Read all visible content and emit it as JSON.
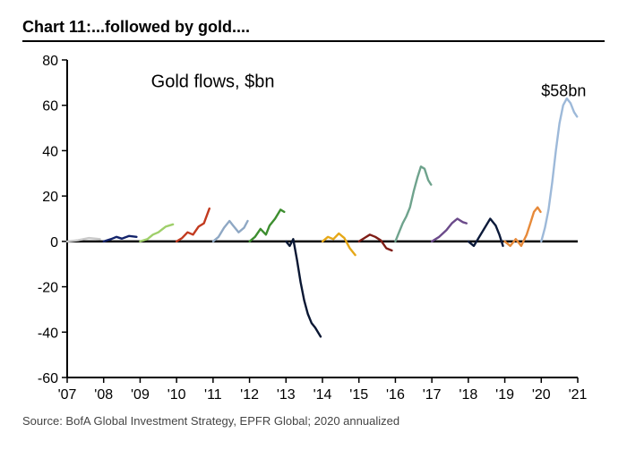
{
  "header": {
    "title": "Chart 11:...followed by gold...."
  },
  "chart": {
    "type": "line",
    "title_internal": "Gold flows, $bn",
    "annotation": "$58bn",
    "xlim": [
      2007,
      2021
    ],
    "ylim": [
      -60,
      80
    ],
    "ytick_step": 20,
    "yticks": [
      -60,
      -40,
      -20,
      0,
      20,
      40,
      60,
      80
    ],
    "xticks": [
      2007,
      2008,
      2009,
      2010,
      2011,
      2012,
      2013,
      2014,
      2015,
      2016,
      2017,
      2018,
      2019,
      2020,
      2021
    ],
    "xtick_labels": [
      "'07",
      "'08",
      "'09",
      "'10",
      "'11",
      "'12",
      "'13",
      "'14",
      "'15",
      "'16",
      "'17",
      "'18",
      "'19",
      "'20",
      "'21"
    ],
    "axis_color": "#000000",
    "background_color": "#ffffff",
    "line_width": 2.4,
    "title_fontsize": 20,
    "tick_fontsize": 16,
    "series": [
      {
        "color": "#c9c9c9",
        "points": [
          [
            2007.0,
            0
          ],
          [
            2007.3,
            0.5
          ],
          [
            2007.6,
            1.5
          ],
          [
            2007.9,
            1.0
          ]
        ]
      },
      {
        "color": "#13236b",
        "points": [
          [
            2008.0,
            0
          ],
          [
            2008.2,
            1.0
          ],
          [
            2008.35,
            2.0
          ],
          [
            2008.5,
            1.2
          ],
          [
            2008.7,
            2.4
          ],
          [
            2008.9,
            2.0
          ]
        ]
      },
      {
        "color": "#9fcf6a",
        "points": [
          [
            2009.0,
            0
          ],
          [
            2009.2,
            1.0
          ],
          [
            2009.35,
            3.0
          ],
          [
            2009.5,
            4.0
          ],
          [
            2009.7,
            6.5
          ],
          [
            2009.9,
            7.5
          ]
        ]
      },
      {
        "color": "#c23a1f",
        "points": [
          [
            2010.0,
            0
          ],
          [
            2010.15,
            1.5
          ],
          [
            2010.3,
            4.0
          ],
          [
            2010.45,
            3.0
          ],
          [
            2010.6,
            6.5
          ],
          [
            2010.75,
            8.0
          ],
          [
            2010.9,
            14.5
          ]
        ]
      },
      {
        "color": "#8fa8c4",
        "points": [
          [
            2011.0,
            0
          ],
          [
            2011.15,
            2.0
          ],
          [
            2011.3,
            6.0
          ],
          [
            2011.45,
            9.0
          ],
          [
            2011.55,
            7.0
          ],
          [
            2011.7,
            4.0
          ],
          [
            2011.85,
            6.0
          ],
          [
            2011.95,
            9.0
          ]
        ]
      },
      {
        "color": "#3d8e2f",
        "points": [
          [
            2012.0,
            0
          ],
          [
            2012.15,
            2.0
          ],
          [
            2012.3,
            5.5
          ],
          [
            2012.45,
            3.0
          ],
          [
            2012.55,
            7.0
          ],
          [
            2012.7,
            10.0
          ],
          [
            2012.85,
            14.0
          ],
          [
            2012.95,
            13.0
          ]
        ]
      },
      {
        "color": "#0a1733",
        "points": [
          [
            2013.0,
            0
          ],
          [
            2013.1,
            -2.0
          ],
          [
            2013.2,
            1.0
          ],
          [
            2013.3,
            -8.0
          ],
          [
            2013.4,
            -18.0
          ],
          [
            2013.5,
            -26.0
          ],
          [
            2013.6,
            -32.0
          ],
          [
            2013.7,
            -36.0
          ],
          [
            2013.8,
            -38.0
          ],
          [
            2013.95,
            -42.0
          ]
        ]
      },
      {
        "color": "#e6a818",
        "points": [
          [
            2014.0,
            0
          ],
          [
            2014.15,
            2.0
          ],
          [
            2014.3,
            1.0
          ],
          [
            2014.45,
            3.5
          ],
          [
            2014.6,
            1.5
          ],
          [
            2014.75,
            -3.0
          ],
          [
            2014.9,
            -6.0
          ]
        ]
      },
      {
        "color": "#7f1d16",
        "points": [
          [
            2015.0,
            0
          ],
          [
            2015.15,
            1.5
          ],
          [
            2015.3,
            3.0
          ],
          [
            2015.45,
            2.0
          ],
          [
            2015.6,
            0.5
          ],
          [
            2015.75,
            -3.0
          ],
          [
            2015.9,
            -4.0
          ]
        ]
      },
      {
        "color": "#6fa38d",
        "points": [
          [
            2016.0,
            0
          ],
          [
            2016.1,
            4.0
          ],
          [
            2016.2,
            8.0
          ],
          [
            2016.3,
            11.0
          ],
          [
            2016.4,
            15.0
          ],
          [
            2016.5,
            22.0
          ],
          [
            2016.6,
            28.0
          ],
          [
            2016.7,
            33.0
          ],
          [
            2016.8,
            32.0
          ],
          [
            2016.9,
            27.0
          ],
          [
            2016.98,
            25.0
          ]
        ]
      },
      {
        "color": "#6b4a8a",
        "points": [
          [
            2017.0,
            0
          ],
          [
            2017.2,
            2.0
          ],
          [
            2017.4,
            5.0
          ],
          [
            2017.55,
            8.0
          ],
          [
            2017.7,
            10.0
          ],
          [
            2017.85,
            8.5
          ],
          [
            2017.95,
            8.0
          ]
        ]
      },
      {
        "color": "#0c1a3a",
        "points": [
          [
            2018.0,
            0
          ],
          [
            2018.15,
            -2.0
          ],
          [
            2018.3,
            2.0
          ],
          [
            2018.45,
            6.0
          ],
          [
            2018.6,
            10.0
          ],
          [
            2018.75,
            7.0
          ],
          [
            2018.85,
            3.0
          ],
          [
            2018.95,
            -2.0
          ]
        ]
      },
      {
        "color": "#e78a3a",
        "points": [
          [
            2019.0,
            0
          ],
          [
            2019.15,
            -2.0
          ],
          [
            2019.3,
            1.0
          ],
          [
            2019.45,
            -2.0
          ],
          [
            2019.6,
            3.0
          ],
          [
            2019.7,
            8.0
          ],
          [
            2019.8,
            13.0
          ],
          [
            2019.9,
            15.0
          ],
          [
            2019.98,
            13.0
          ]
        ]
      },
      {
        "color": "#9db9d9",
        "points": [
          [
            2020.0,
            0
          ],
          [
            2020.1,
            6.0
          ],
          [
            2020.2,
            14.0
          ],
          [
            2020.3,
            26.0
          ],
          [
            2020.4,
            40.0
          ],
          [
            2020.5,
            52.0
          ],
          [
            2020.6,
            60.0
          ],
          [
            2020.7,
            63.0
          ],
          [
            2020.8,
            61.0
          ],
          [
            2020.9,
            57.0
          ],
          [
            2020.98,
            55.0
          ]
        ]
      }
    ]
  },
  "source": "Source: BofA Global Investment Strategy, EPFR Global; 2020 annualized"
}
